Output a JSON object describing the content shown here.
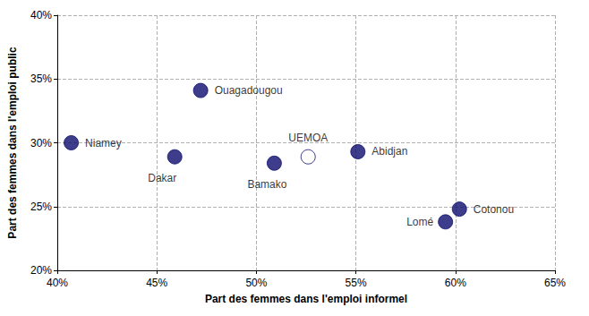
{
  "chart_data": {
    "type": "scatter",
    "x_label": "Part des femmes dans l'emploi informel",
    "y_label": "Part des femmes dans l'emploi public",
    "labels": [
      "Niamey",
      "Dakar",
      "Ouagadougou",
      "Bamako",
      "UEMOA",
      "Abidjan",
      "Lomé",
      "Cotonou"
    ],
    "x": [
      40.7,
      45.9,
      47.2,
      50.9,
      52.6,
      55.1,
      59.5,
      60.2
    ],
    "values": [
      30.0,
      28.9,
      34.1,
      28.4,
      28.9,
      29.3,
      23.8,
      24.8
    ],
    "colors": [
      "#0c0c6e",
      "#0c0c6e",
      "#0c0c6e",
      "#0c0c6e",
      "#ffffff",
      "#0c0c6e",
      "#0c0c6e",
      "#0c0c6e"
    ],
    "marker": "circle",
    "xlim": [
      40,
      65
    ],
    "ylim": [
      20,
      40
    ],
    "xticks": [
      {
        "value": 40,
        "label": "40%"
      },
      {
        "value": 45,
        "label": "45%"
      },
      {
        "value": 50,
        "label": "50%"
      },
      {
        "value": 55,
        "label": "55%"
      },
      {
        "value": 60,
        "label": "60%"
      },
      {
        "value": 65,
        "label": "65%"
      }
    ],
    "yticks": [
      {
        "value": 20,
        "label": "20%"
      },
      {
        "value": 25,
        "label": "25%"
      },
      {
        "value": 30,
        "label": "30%"
      },
      {
        "value": 35,
        "label": "35%"
      },
      {
        "value": 40,
        "label": "40%"
      }
    ],
    "grid": true
  }
}
